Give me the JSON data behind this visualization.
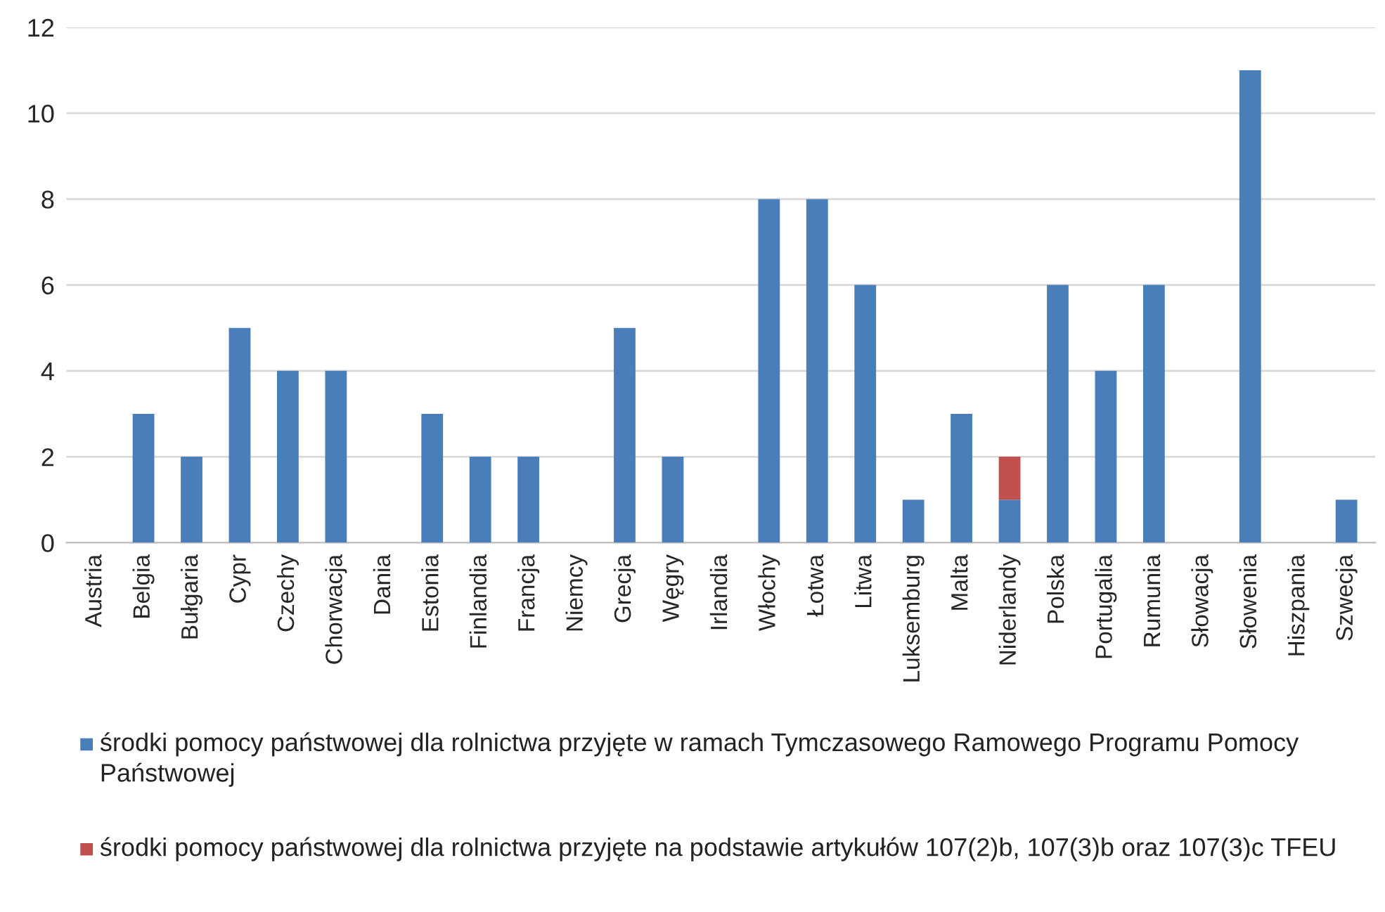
{
  "chart_data": {
    "type": "bar",
    "stacked": true,
    "categories": [
      "Austria",
      "Belgia",
      "Bułgaria",
      "Cypr",
      "Czechy",
      "Chorwacja",
      "Dania",
      "Estonia",
      "Finlandia",
      "Francja",
      "Niemcy",
      "Grecja",
      "Węgry",
      "Irlandia",
      "Włochy",
      "Łotwa",
      "Litwa",
      "Luksemburg",
      "Malta",
      "Niderlandy",
      "Polska",
      "Portugalia",
      "Rumunia",
      "Słowacja",
      "Słowenia",
      "Hiszpania",
      "Szwecja"
    ],
    "series": [
      {
        "name": "środki pomocy państwowej dla rolnictwa przyjęte w ramach Tymczasowego Ramowego Programu Pomocy Państwowej",
        "color": "#4a7ebb",
        "values": [
          0,
          3,
          2,
          5,
          4,
          4,
          0,
          3,
          2,
          2,
          0,
          5,
          2,
          0,
          8,
          8,
          6,
          1,
          3,
          1,
          6,
          4,
          6,
          0,
          11,
          0,
          1
        ]
      },
      {
        "name": "środki pomocy państwowej dla rolnictwa przyjęte na podstawie artykułów 107(2)b, 107(3)b oraz 107(3)c TFEU",
        "color": "#c0504d",
        "values": [
          null,
          null,
          null,
          null,
          null,
          null,
          null,
          null,
          null,
          null,
          null,
          null,
          null,
          null,
          null,
          null,
          null,
          null,
          null,
          1,
          null,
          null,
          null,
          null,
          null,
          null,
          null
        ]
      }
    ],
    "ylim": [
      0,
      12
    ],
    "yticks": [
      0,
      2,
      4,
      6,
      8,
      10,
      12
    ],
    "grid": "y",
    "legend": "bottom"
  }
}
